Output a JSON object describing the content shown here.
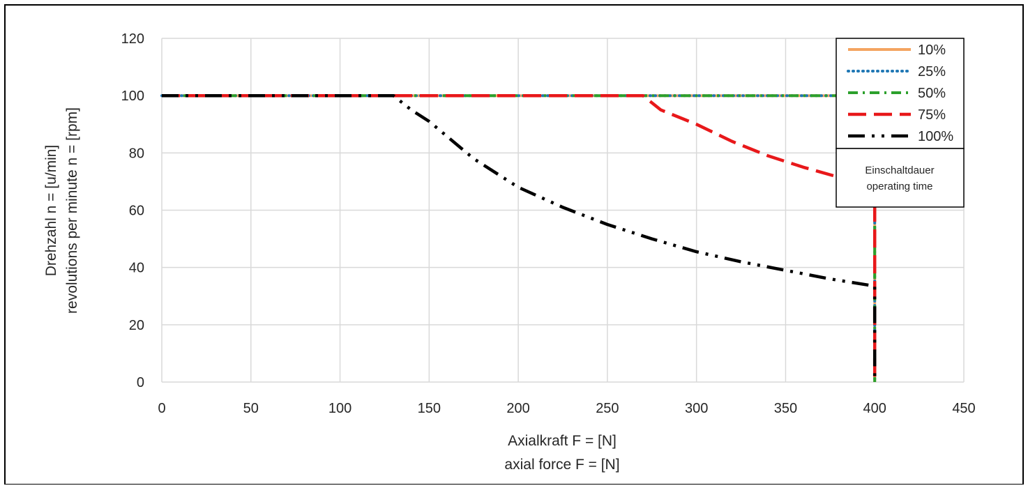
{
  "chart_data": {
    "type": "line",
    "xlabel": [
      "Axialkraft F = [N]",
      "axial force F = [N]"
    ],
    "ylabel": [
      "Drehzahl n = [u/min]",
      "revolutions per minute n = [rpm]"
    ],
    "xlim": [
      0,
      450
    ],
    "ylim": [
      0,
      120
    ],
    "xticks": [
      0,
      50,
      100,
      150,
      200,
      250,
      300,
      350,
      400,
      450
    ],
    "yticks": [
      0,
      20,
      40,
      60,
      80,
      100,
      120
    ],
    "grid": true,
    "legend_position": "top-right",
    "legend_note": [
      "Einschaltdauer",
      "operating time"
    ],
    "series": [
      {
        "name": "10%",
        "color": "#F4A460",
        "style": "solid",
        "points": [
          [
            0,
            100
          ],
          [
            400,
            100
          ],
          [
            400,
            0
          ]
        ]
      },
      {
        "name": "25%",
        "color": "#1F77B4",
        "style": "dotted",
        "points": [
          [
            0,
            100
          ],
          [
            400,
            100
          ],
          [
            400,
            0
          ]
        ]
      },
      {
        "name": "50%",
        "color": "#2CA02C",
        "style": "dashdot",
        "points": [
          [
            0,
            100
          ],
          [
            400,
            100
          ],
          [
            400,
            0
          ]
        ]
      },
      {
        "name": "75%",
        "color": "#E8181A",
        "style": "dashed",
        "points": [
          [
            0,
            100
          ],
          [
            270,
            100
          ],
          [
            280,
            95
          ],
          [
            300,
            90
          ],
          [
            320,
            84
          ],
          [
            340,
            79
          ],
          [
            360,
            75
          ],
          [
            380,
            71.5
          ],
          [
            400,
            68
          ],
          [
            400,
            0
          ]
        ]
      },
      {
        "name": "100%",
        "color": "#000000",
        "style": "dashdotdot",
        "points": [
          [
            0,
            100
          ],
          [
            130,
            100
          ],
          [
            140,
            95
          ],
          [
            150,
            91
          ],
          [
            175,
            78
          ],
          [
            200,
            68
          ],
          [
            225,
            61
          ],
          [
            250,
            55
          ],
          [
            275,
            50
          ],
          [
            300,
            45.5
          ],
          [
            325,
            42
          ],
          [
            350,
            39
          ],
          [
            375,
            36
          ],
          [
            400,
            33.5
          ],
          [
            400,
            0
          ]
        ]
      }
    ]
  }
}
